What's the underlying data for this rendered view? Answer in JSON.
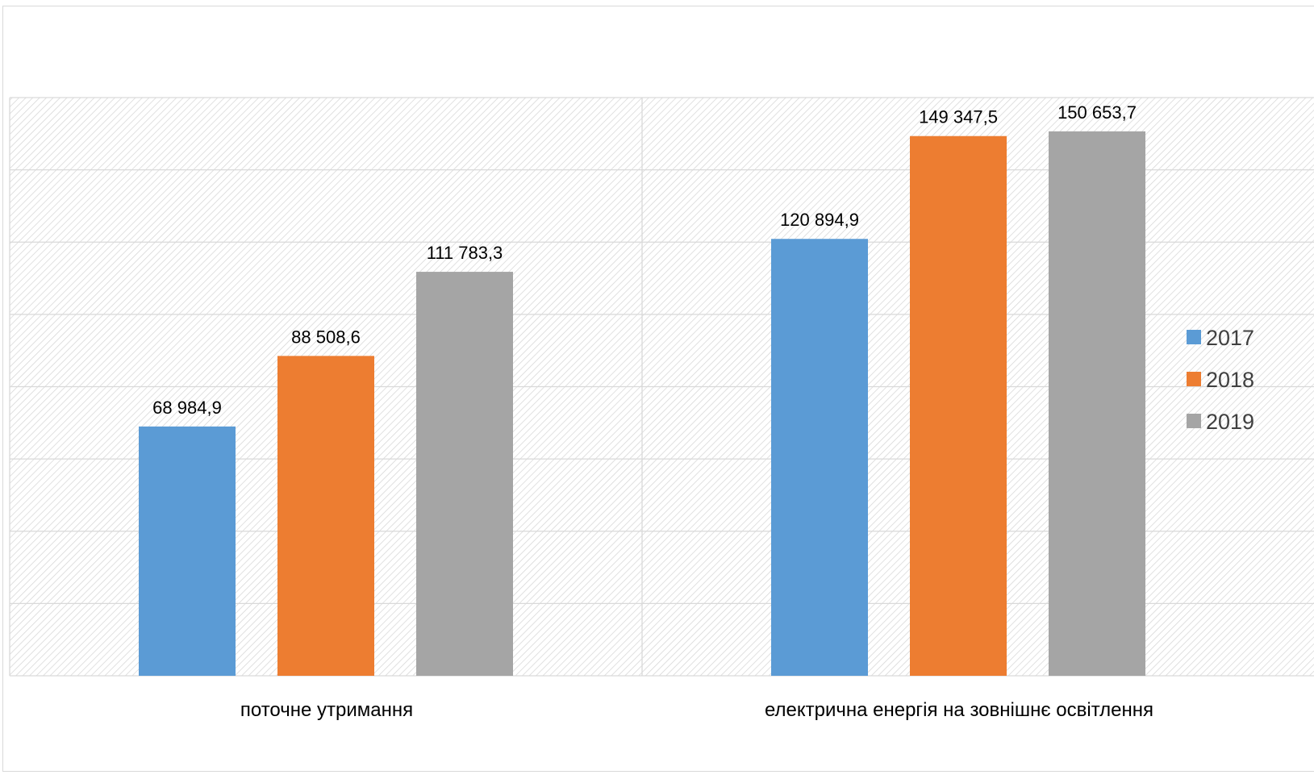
{
  "chart_data": {
    "type": "bar",
    "categories": [
      "поточне утримання",
      "електрична енергія на зовнішнє освітлення"
    ],
    "series": [
      {
        "name": "2017",
        "values": [
          68984.9,
          120894.9
        ],
        "labels": [
          "68 984,9",
          "120 894,9"
        ],
        "color": "#5b9bd5"
      },
      {
        "name": "2018",
        "values": [
          88508.6,
          149347.5
        ],
        "labels": [
          "88 508,6",
          "149 347,5"
        ],
        "color": "#ed7d31"
      },
      {
        "name": "2019",
        "values": [
          111783.3,
          150653.7
        ],
        "labels": [
          "111 783,3",
          "150 653,7"
        ],
        "color": "#a5a5a5"
      }
    ],
    "ylim": [
      0,
      160000
    ],
    "y_gridline_step": 20000,
    "y_tick_labels_shown": false,
    "grid": true,
    "plot_background": "diagonal-hatch",
    "legend_position": "right",
    "title": "",
    "xlabel": "",
    "ylabel": ""
  }
}
